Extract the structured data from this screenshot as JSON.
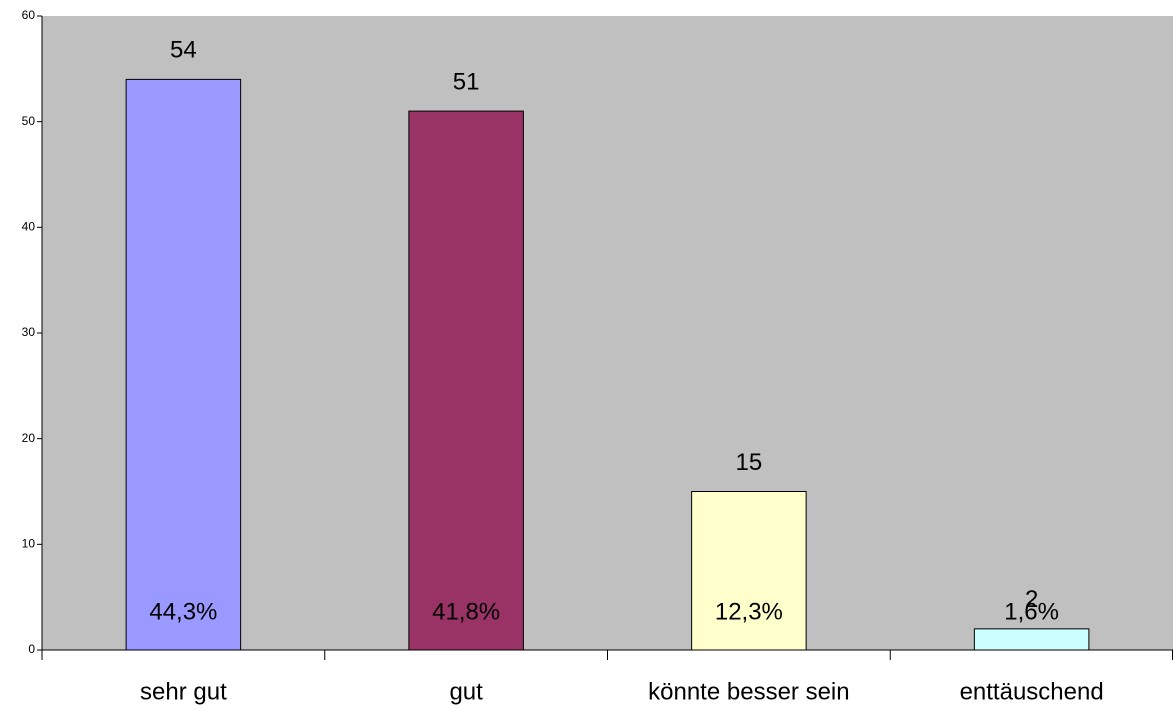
{
  "chart_data": {
    "type": "bar",
    "categories": [
      "sehr gut",
      "gut",
      "könnte besser sein",
      "enttäuschend"
    ],
    "values": [
      54,
      51,
      15,
      2
    ],
    "percent_labels": [
      "44,3%",
      "41,8%",
      "12,3%",
      "1,6%"
    ],
    "colors": [
      "#9999ff",
      "#993366",
      "#ffffcc",
      "#ccffff"
    ],
    "background": "#c0c0c0",
    "ylim": [
      0,
      60
    ],
    "yticks": [
      0,
      10,
      20,
      30,
      40,
      50,
      60
    ],
    "grid": false
  }
}
